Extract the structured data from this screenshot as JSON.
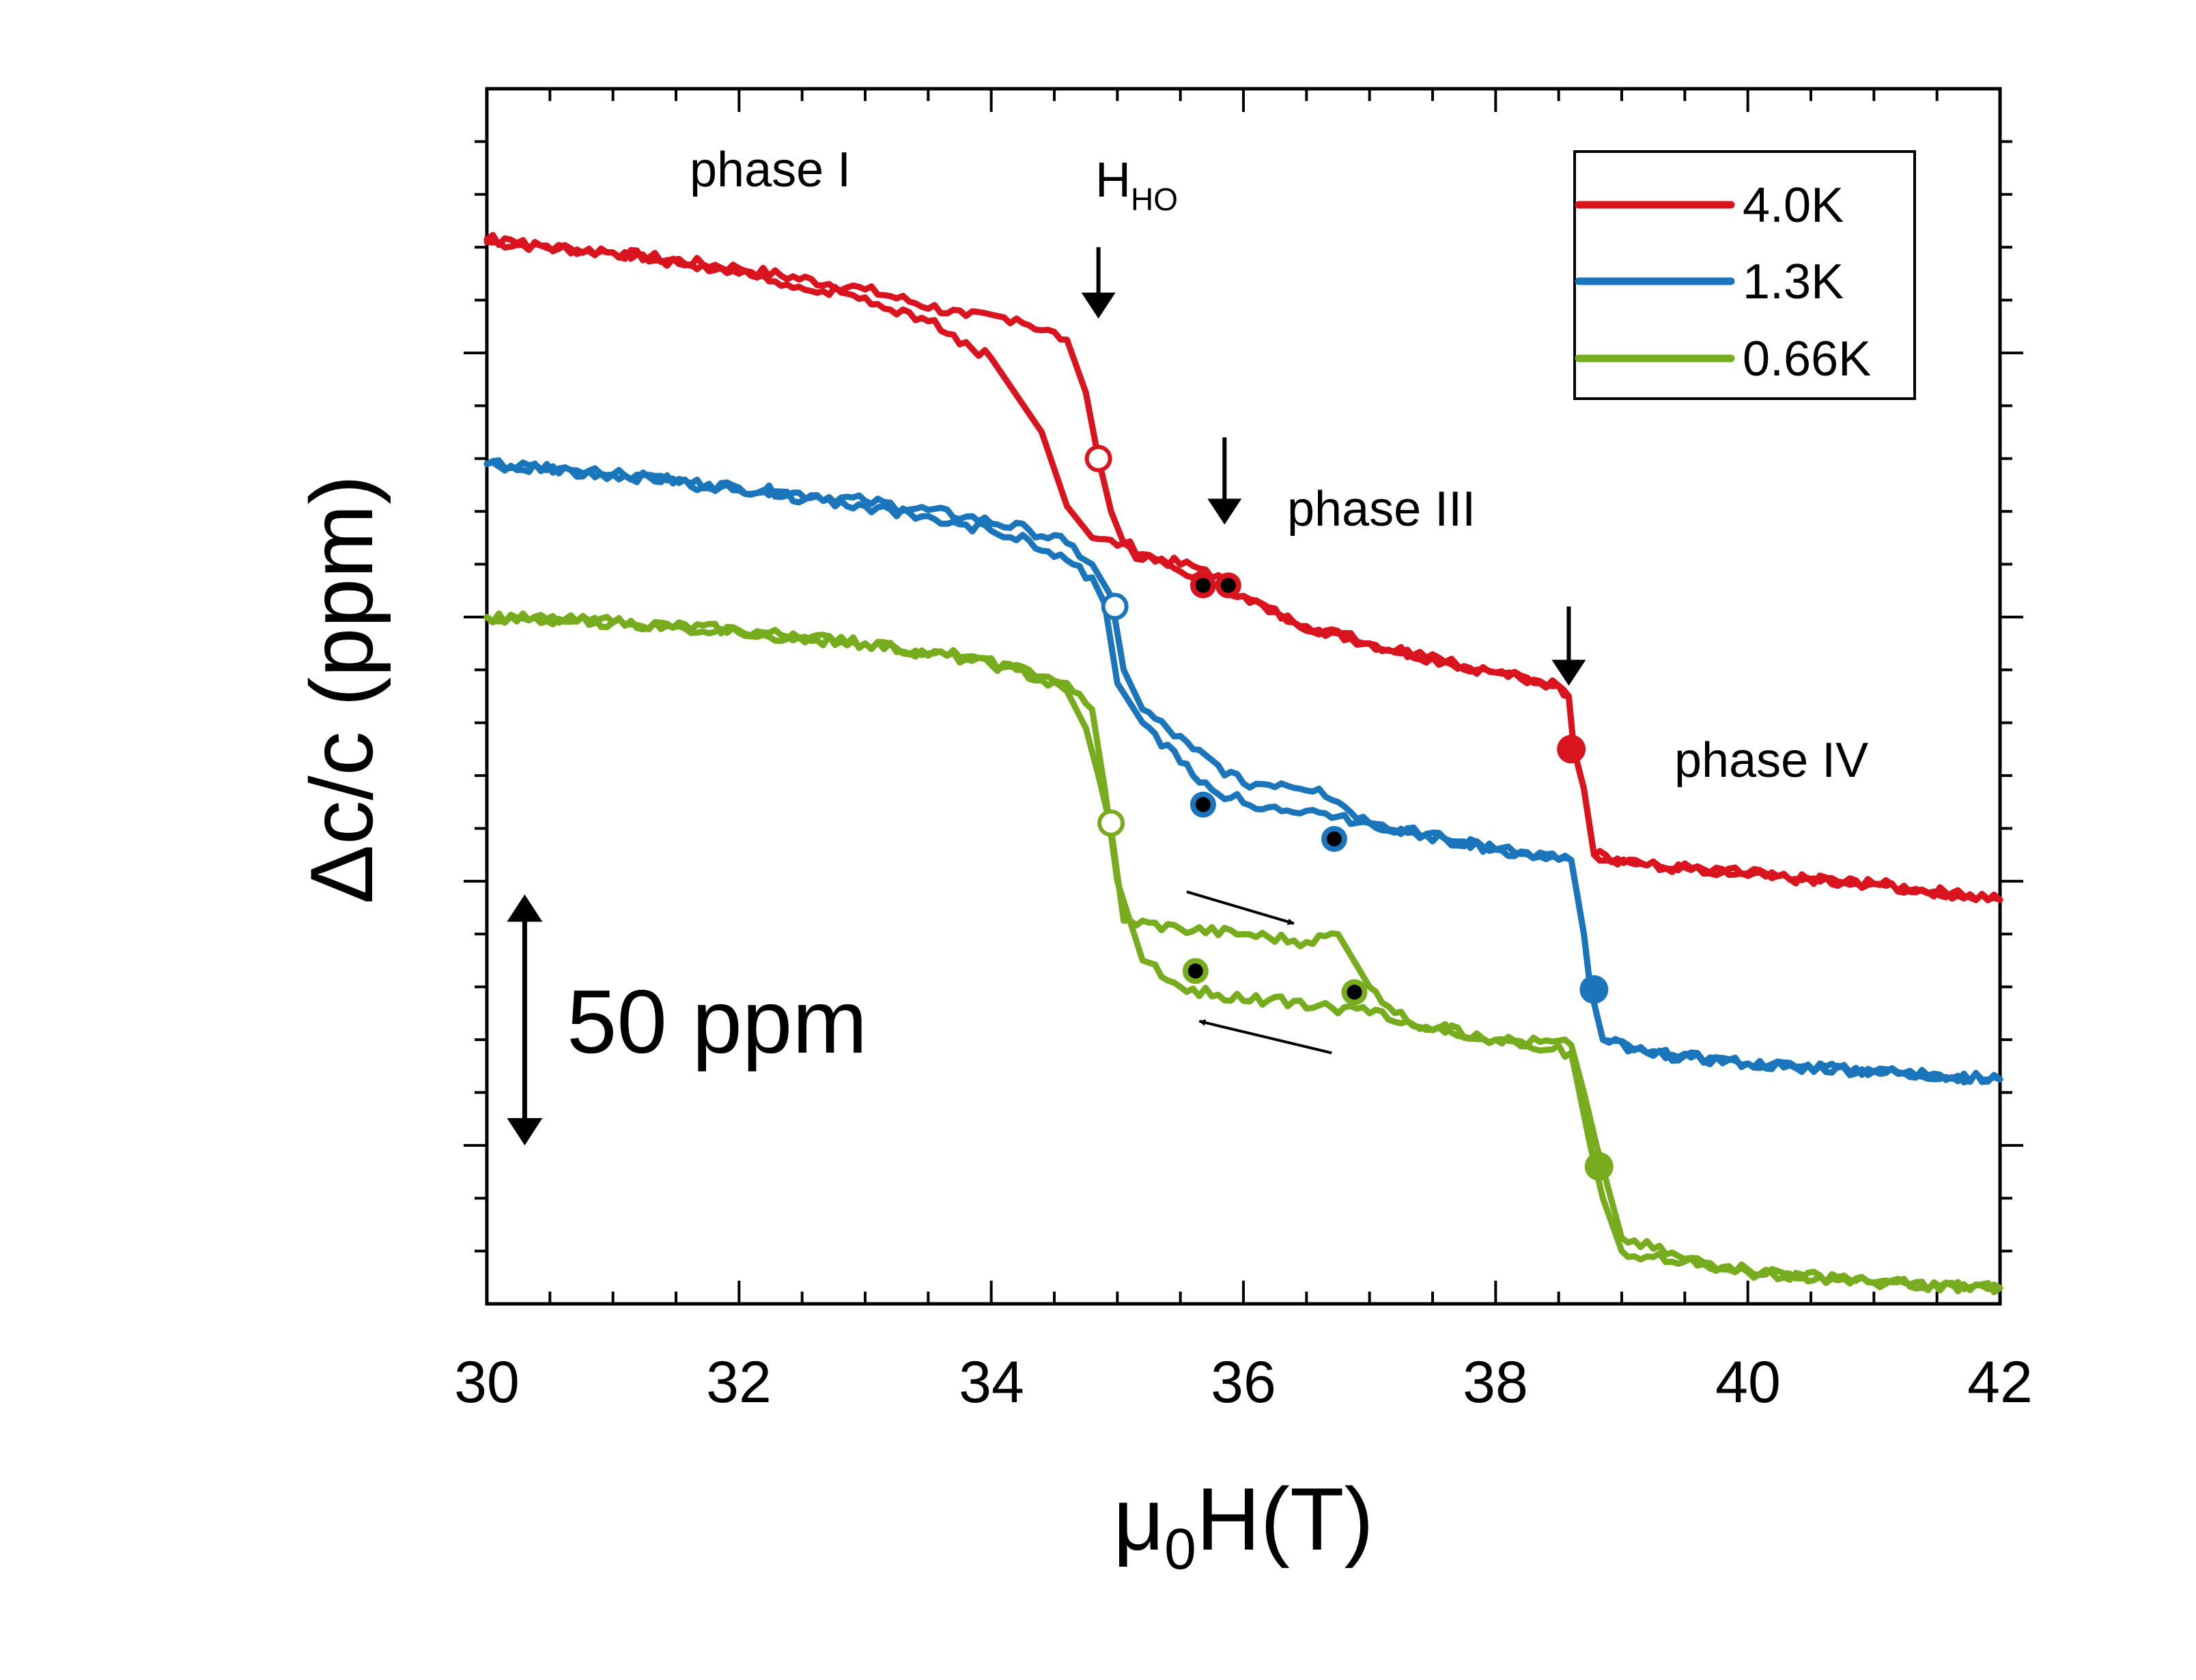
{
  "chart_data": {
    "type": "line",
    "title": "",
    "xlabel": "μ0H(T)",
    "xlabel_main": "μ",
    "xlabel_sub": "0",
    "xlabel_rest": "H(T)",
    "ylabel": "Δc/c (ppm)",
    "xlim": [
      30,
      42
    ],
    "ylim": [
      0,
      460
    ],
    "xticks": [
      30,
      32,
      34,
      36,
      38,
      40,
      42
    ],
    "xtick_labels": [
      "30",
      "32",
      "34",
      "36",
      "38",
      "40",
      "42"
    ],
    "y_major_ticks": [
      60,
      160,
      260,
      360
    ],
    "grid": false,
    "legend_position": "top-right",
    "series": [
      {
        "name": "4.0K",
        "color": "#d9141e",
        "up": {
          "x": [
            30,
            31,
            32,
            33,
            33.8,
            34.2,
            34.6,
            34.75,
            34.85,
            34.95,
            35.05,
            35.3,
            35.7,
            36.0,
            36.4,
            37.0,
            37.6,
            38.0,
            38.5,
            38.58,
            38.62,
            38.7,
            38.78,
            39.2,
            40.0,
            41.0,
            42.0
          ],
          "y": [
            402,
            398,
            392,
            384,
            374,
            373,
            365,
            345,
            320,
            300,
            288,
            282,
            278,
            268,
            258,
            250,
            243,
            239,
            234,
            230,
            210,
            195,
            170,
            166,
            162,
            159,
            153
          ]
        },
        "down": {
          "x": [
            42.0,
            41.0,
            40.0,
            39.2,
            38.78,
            38.7,
            38.62,
            38.58,
            38.5,
            38.0,
            37.6,
            37.0,
            36.4,
            36.0,
            35.7,
            35.3,
            35.0,
            34.8,
            34.6,
            34.4,
            34.0,
            33.5,
            33.0,
            32.0,
            31.0,
            30.0
          ],
          "y": [
            153,
            159,
            163,
            166,
            170,
            195,
            210,
            230,
            234,
            239,
            243,
            250,
            258,
            268,
            275,
            281,
            287,
            290,
            302,
            330,
            358,
            372,
            381,
            390,
            398,
            403
          ]
        },
        "open_circles": [
          {
            "x": 34.85,
            "y": 320
          }
        ],
        "filled_circles": [
          {
            "x": 38.6,
            "y": 210
          }
        ],
        "black_dots": [
          {
            "x": 35.68,
            "y": 272
          },
          {
            "x": 35.88,
            "y": 272
          }
        ]
      },
      {
        "name": "1.3K",
        "color": "#1b75bb",
        "up": {
          "x": [
            30,
            31,
            32,
            33,
            33.8,
            34.3,
            34.6,
            34.8,
            34.95,
            35.05,
            35.2,
            35.6,
            36.0,
            36.3,
            36.6,
            36.75,
            37.0,
            37.6,
            38.0,
            38.6,
            38.7,
            38.75,
            38.85,
            39.2,
            40.0,
            41.0,
            42.0
          ],
          "y": [
            318,
            314,
            309,
            304,
            298,
            293,
            288,
            280,
            268,
            240,
            225,
            210,
            197,
            197,
            195,
            190,
            182,
            176,
            172,
            168,
            140,
            120,
            100,
            95,
            91,
            88,
            85
          ]
        },
        "down": {
          "x": [
            42.0,
            41.0,
            40.0,
            39.2,
            38.85,
            38.75,
            38.7,
            38.6,
            38.0,
            37.6,
            37.0,
            36.6,
            36.2,
            35.8,
            35.6,
            35.2,
            35.0,
            34.9,
            34.8,
            34.3,
            33.8,
            33.0,
            32.0,
            31.0,
            30.0
          ],
          "y": [
            85,
            88,
            91,
            95,
            100,
            120,
            140,
            168,
            172,
            176,
            182,
            186,
            188,
            193,
            200,
            220,
            235,
            265,
            275,
            289,
            295,
            302,
            308,
            314,
            318
          ]
        },
        "open_circles": [
          {
            "x": 34.98,
            "y": 264
          }
        ],
        "filled_circles": [
          {
            "x": 38.78,
            "y": 119
          }
        ],
        "black_dots": [
          {
            "x": 35.68,
            "y": 189
          },
          {
            "x": 36.72,
            "y": 176
          }
        ]
      },
      {
        "name": "0.66K",
        "color": "#77ac1e",
        "up": {
          "x": [
            30,
            31,
            32,
            33,
            33.8,
            34.2,
            34.6,
            34.75,
            34.85,
            34.95,
            35.05,
            35.5,
            36.0,
            36.5,
            36.75,
            37.0,
            37.3,
            38.0,
            38.6,
            38.7,
            38.8,
            39.0,
            39.5,
            40.0,
            41.0,
            42.0
          ],
          "y": [
            260,
            258,
            255,
            250,
            244,
            240,
            232,
            218,
            200,
            180,
            145,
            142,
            140,
            137,
            140,
            120,
            107,
            100,
            98,
            80,
            60,
            25,
            17,
            13,
            8,
            6
          ]
        },
        "down": {
          "x": [
            42.0,
            41.0,
            40.0,
            39.5,
            39.0,
            38.85,
            38.75,
            38.6,
            38.0,
            37.3,
            37.0,
            36.6,
            36.2,
            35.8,
            35.5,
            35.2,
            35.0,
            34.9,
            34.8,
            34.6,
            34.3,
            33.8,
            33.0,
            32.0,
            31.0,
            30.0
          ],
          "y": [
            6,
            8,
            12,
            16,
            20,
            40,
            60,
            95,
            100,
            107,
            110,
            113,
            115,
            117,
            120,
            130,
            160,
            195,
            225,
            235,
            240,
            245,
            250,
            254,
            258,
            260
          ]
        },
        "open_circles": [
          {
            "x": 34.95,
            "y": 182
          }
        ],
        "filled_circles": [
          {
            "x": 38.82,
            "y": 52
          }
        ],
        "black_dots": [
          {
            "x": 35.62,
            "y": 126
          },
          {
            "x": 36.88,
            "y": 118
          }
        ]
      }
    ],
    "annotations": {
      "phase_I": "phase I",
      "phase_III": "phase III",
      "phase_IV": "phase IV",
      "hho_main": "H",
      "hho_sub": "HO",
      "scale_bar": "50 ppm",
      "scale_bar_value_ppm": 50,
      "hho_arrow": {
        "x": 34.85,
        "y_top": 400,
        "y_bottom": 373
      },
      "transition_arrows": [
        {
          "x": 35.85,
          "y_top": 328,
          "y_bottom": 295
        },
        {
          "x": 38.58,
          "y_top": 264,
          "y_bottom": 234
        }
      ],
      "sweep_up_arrow": {
        "x1": 35.55,
        "y1": 156,
        "x2": 36.4,
        "y2": 144
      },
      "sweep_down_arrow": {
        "x1": 36.7,
        "y1": 95,
        "x2": 35.65,
        "y2": 107
      },
      "scale_bar_arrow": {
        "x": 30.3,
        "y_top": 155,
        "y_bottom": 60
      }
    }
  }
}
